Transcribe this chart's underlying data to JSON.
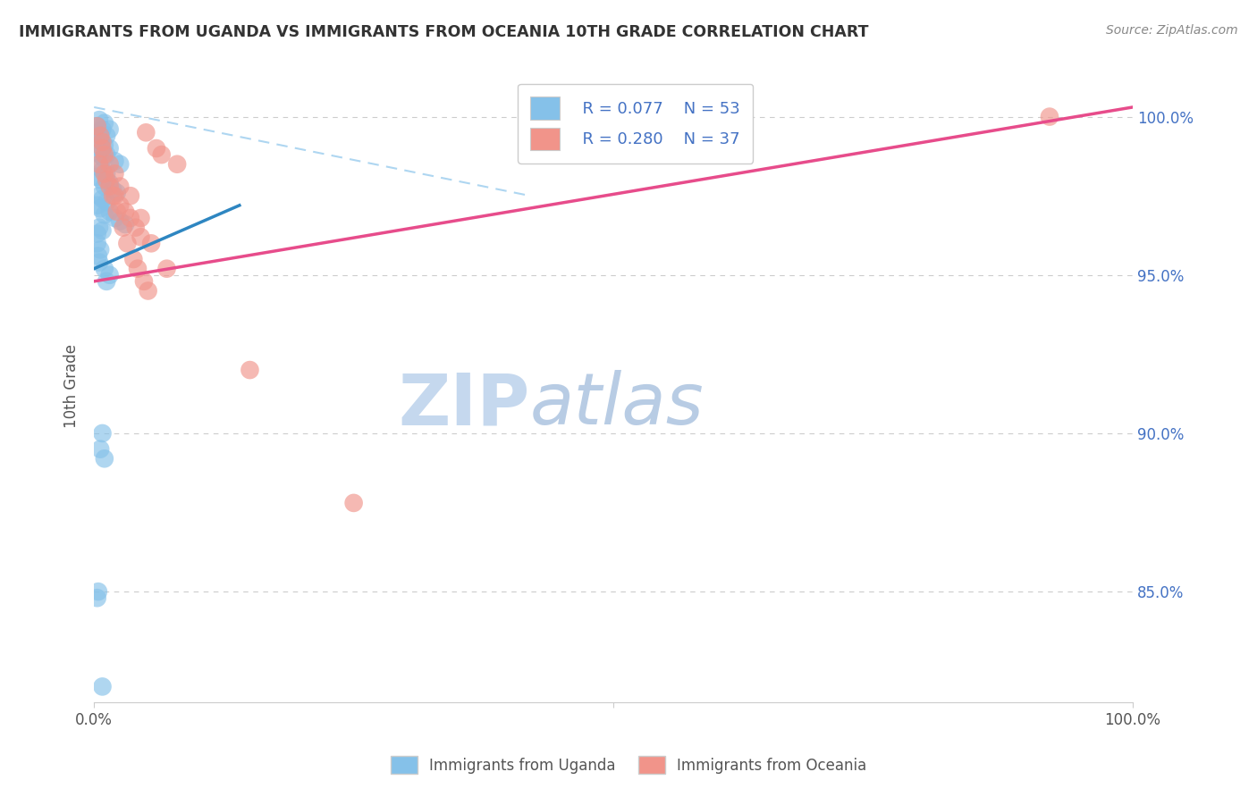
{
  "title": "IMMIGRANTS FROM UGANDA VS IMMIGRANTS FROM OCEANIA 10TH GRADE CORRELATION CHART",
  "source_text": "Source: ZipAtlas.com",
  "ylabel": "10th Grade",
  "xlim": [
    0.0,
    1.0
  ],
  "ylim": [
    0.815,
    1.015
  ],
  "legend_r1": "R = 0.077",
  "legend_n1": "N = 53",
  "legend_r2": "R = 0.280",
  "legend_n2": "N = 37",
  "color_blue": "#85C1E9",
  "color_pink": "#F1948A",
  "color_blue_line": "#2E86C1",
  "color_pink_line": "#E74C8B",
  "color_dashed": "#AED6F1",
  "watermark_zip_color": "#D0E8F8",
  "watermark_atlas_color": "#C8DCF0",
  "background": "#FFFFFF",
  "y_tick_vals": [
    0.85,
    0.9,
    0.95,
    1.0
  ],
  "y_tick_labels": [
    "85.0%",
    "90.0%",
    "95.0%",
    "100.0%"
  ],
  "blue_scatter_x": [
    0.005,
    0.01,
    0.003,
    0.008,
    0.015,
    0.003,
    0.006,
    0.012,
    0.004,
    0.007,
    0.01,
    0.015,
    0.008,
    0.012,
    0.006,
    0.009,
    0.02,
    0.025,
    0.005,
    0.008,
    0.012,
    0.003,
    0.007,
    0.015,
    0.01,
    0.018,
    0.022,
    0.005,
    0.008,
    0.012,
    0.003,
    0.006,
    0.015,
    0.01,
    0.02,
    0.025,
    0.03,
    0.005,
    0.008,
    0.003,
    0.003,
    0.006,
    0.004,
    0.005,
    0.01,
    0.015,
    0.012,
    0.008,
    0.006,
    0.01,
    0.004,
    0.003,
    0.008
  ],
  "blue_scatter_y": [
    0.999,
    0.998,
    0.997,
    0.996,
    0.996,
    0.995,
    0.995,
    0.994,
    0.993,
    0.992,
    0.991,
    0.99,
    0.989,
    0.988,
    0.988,
    0.987,
    0.986,
    0.985,
    0.984,
    0.983,
    0.982,
    0.981,
    0.98,
    0.979,
    0.978,
    0.977,
    0.976,
    0.975,
    0.974,
    0.973,
    0.972,
    0.971,
    0.97,
    0.969,
    0.968,
    0.967,
    0.966,
    0.965,
    0.964,
    0.963,
    0.96,
    0.958,
    0.956,
    0.954,
    0.952,
    0.95,
    0.948,
    0.9,
    0.895,
    0.892,
    0.85,
    0.848,
    0.82
  ],
  "pink_scatter_x": [
    0.003,
    0.05,
    0.06,
    0.065,
    0.08,
    0.01,
    0.015,
    0.02,
    0.025,
    0.03,
    0.035,
    0.04,
    0.045,
    0.012,
    0.008,
    0.018,
    0.022,
    0.028,
    0.032,
    0.038,
    0.042,
    0.048,
    0.052,
    0.005,
    0.15,
    0.25,
    0.006,
    0.008,
    0.01,
    0.015,
    0.02,
    0.025,
    0.035,
    0.045,
    0.055,
    0.07,
    0.92
  ],
  "pink_scatter_y": [
    0.997,
    0.995,
    0.99,
    0.988,
    0.985,
    0.982,
    0.978,
    0.975,
    0.972,
    0.97,
    0.968,
    0.965,
    0.962,
    0.98,
    0.992,
    0.975,
    0.97,
    0.965,
    0.96,
    0.955,
    0.952,
    0.948,
    0.945,
    0.985,
    0.92,
    0.878,
    0.994,
    0.99,
    0.988,
    0.985,
    0.982,
    0.978,
    0.975,
    0.968,
    0.96,
    0.952,
    1.0
  ],
  "blue_line_x": [
    0.0,
    0.14
  ],
  "blue_line_y": [
    0.952,
    0.972
  ],
  "pink_line_x": [
    0.0,
    1.0
  ],
  "pink_line_y": [
    0.948,
    1.003
  ],
  "dashed_line_x": [
    0.0,
    0.42
  ],
  "dashed_line_y": [
    1.003,
    0.975
  ]
}
